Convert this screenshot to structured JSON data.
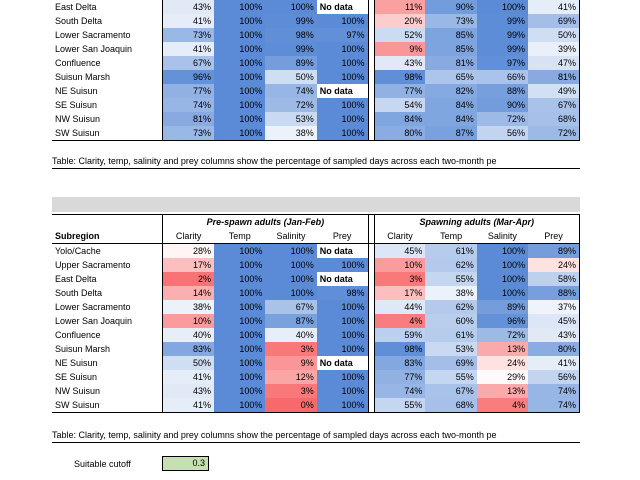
{
  "top_table": {
    "rows": [
      {
        "name": "East Delta",
        "l": [
          "43%",
          "100%",
          "100%",
          "No data"
        ],
        "r": [
          "11%",
          "90%",
          "100%",
          "41%"
        ]
      },
      {
        "name": "South Delta",
        "l": [
          "41%",
          "100%",
          "99%",
          "100%"
        ],
        "r": [
          "20%",
          "73%",
          "99%",
          "69%"
        ]
      },
      {
        "name": "Lower Sacramento",
        "l": [
          "73%",
          "100%",
          "98%",
          "97%"
        ],
        "r": [
          "52%",
          "85%",
          "99%",
          "50%"
        ]
      },
      {
        "name": "Lower San Joaquin",
        "l": [
          "41%",
          "100%",
          "99%",
          "100%"
        ],
        "r": [
          "9%",
          "85%",
          "99%",
          "39%"
        ]
      },
      {
        "name": "Confluence",
        "l": [
          "67%",
          "100%",
          "89%",
          "100%"
        ],
        "r": [
          "43%",
          "81%",
          "97%",
          "47%"
        ]
      },
      {
        "name": "Suisun Marsh",
        "l": [
          "96%",
          "100%",
          "50%",
          "100%"
        ],
        "r": [
          "98%",
          "65%",
          "66%",
          "81%"
        ]
      },
      {
        "name": "NE Suisun",
        "l": [
          "77%",
          "100%",
          "74%",
          "No data"
        ],
        "r": [
          "77%",
          "82%",
          "88%",
          "49%"
        ]
      },
      {
        "name": "SE Suisun",
        "l": [
          "74%",
          "100%",
          "72%",
          "100%"
        ],
        "r": [
          "54%",
          "84%",
          "90%",
          "67%"
        ]
      },
      {
        "name": "NW Suisun",
        "l": [
          "81%",
          "100%",
          "53%",
          "100%"
        ],
        "r": [
          "84%",
          "84%",
          "72%",
          "68%"
        ]
      },
      {
        "name": "SW Suisun",
        "l": [
          "73%",
          "100%",
          "38%",
          "100%"
        ],
        "r": [
          "80%",
          "87%",
          "56%",
          "72%"
        ]
      }
    ],
    "caption": "Table:  Clarity, temp, salinity and prey columns show the percentage of sampled days across each two-month pe"
  },
  "bottom_table": {
    "group_left": "Pre-spawn adults (Jan-Feb)",
    "group_right": "Spawning adults (Mar-Apr)",
    "subregion_header": "Subregion",
    "columns": [
      "Clarity",
      "Temp",
      "Salinity",
      "Prey"
    ],
    "rows": [
      {
        "name": "Yolo/Cache",
        "l": [
          "28%",
          "100%",
          "100%",
          "No data"
        ],
        "r": [
          "45%",
          "61%",
          "100%",
          "89%"
        ]
      },
      {
        "name": "Upper Sacramento",
        "l": [
          "17%",
          "100%",
          "100%",
          "100%"
        ],
        "r": [
          "10%",
          "62%",
          "100%",
          "24%"
        ]
      },
      {
        "name": "East Delta",
        "l": [
          "2%",
          "100%",
          "100%",
          "No data"
        ],
        "r": [
          "3%",
          "55%",
          "100%",
          "58%"
        ]
      },
      {
        "name": "South Delta",
        "l": [
          "14%",
          "100%",
          "100%",
          "98%"
        ],
        "r": [
          "17%",
          "38%",
          "100%",
          "88%"
        ]
      },
      {
        "name": "Lower Sacramento",
        "l": [
          "38%",
          "100%",
          "67%",
          "100%"
        ],
        "r": [
          "44%",
          "62%",
          "89%",
          "37%"
        ]
      },
      {
        "name": "Lower San Joaquin",
        "l": [
          "10%",
          "100%",
          "87%",
          "100%"
        ],
        "r": [
          "4%",
          "60%",
          "96%",
          "45%"
        ]
      },
      {
        "name": "Confluence",
        "l": [
          "40%",
          "100%",
          "40%",
          "100%"
        ],
        "r": [
          "59%",
          "61%",
          "72%",
          "43%"
        ]
      },
      {
        "name": "Suisun Marsh",
        "l": [
          "83%",
          "100%",
          "3%",
          "100%"
        ],
        "r": [
          "98%",
          "53%",
          "13%",
          "80%"
        ]
      },
      {
        "name": "NE Suisun",
        "l": [
          "50%",
          "100%",
          "9%",
          "No data"
        ],
        "r": [
          "83%",
          "69%",
          "24%",
          "41%"
        ]
      },
      {
        "name": "SE Suisun",
        "l": [
          "41%",
          "100%",
          "12%",
          "100%"
        ],
        "r": [
          "77%",
          "55%",
          "29%",
          "56%"
        ]
      },
      {
        "name": "NW Suisun",
        "l": [
          "43%",
          "100%",
          "3%",
          "100%"
        ],
        "r": [
          "74%",
          "67%",
          "13%",
          "74%"
        ]
      },
      {
        "name": "SW Suisun",
        "l": [
          "41%",
          "100%",
          "0%",
          "100%"
        ],
        "r": [
          "55%",
          "68%",
          "4%",
          "74%"
        ]
      }
    ],
    "caption": "Table:  Clarity, temp, salinity and prey columns show the percentage of sampled days across each two-month pe"
  },
  "cutoff": {
    "label": "Suitable cutoff",
    "value": "0.3"
  },
  "colors": {
    "high": "#5b8bd6",
    "mid": "#ffffff",
    "low": "#f8696b",
    "nodata_text": "#000000",
    "cutoff_fill": "#c6e0b4",
    "band": "#d9d9d9"
  }
}
